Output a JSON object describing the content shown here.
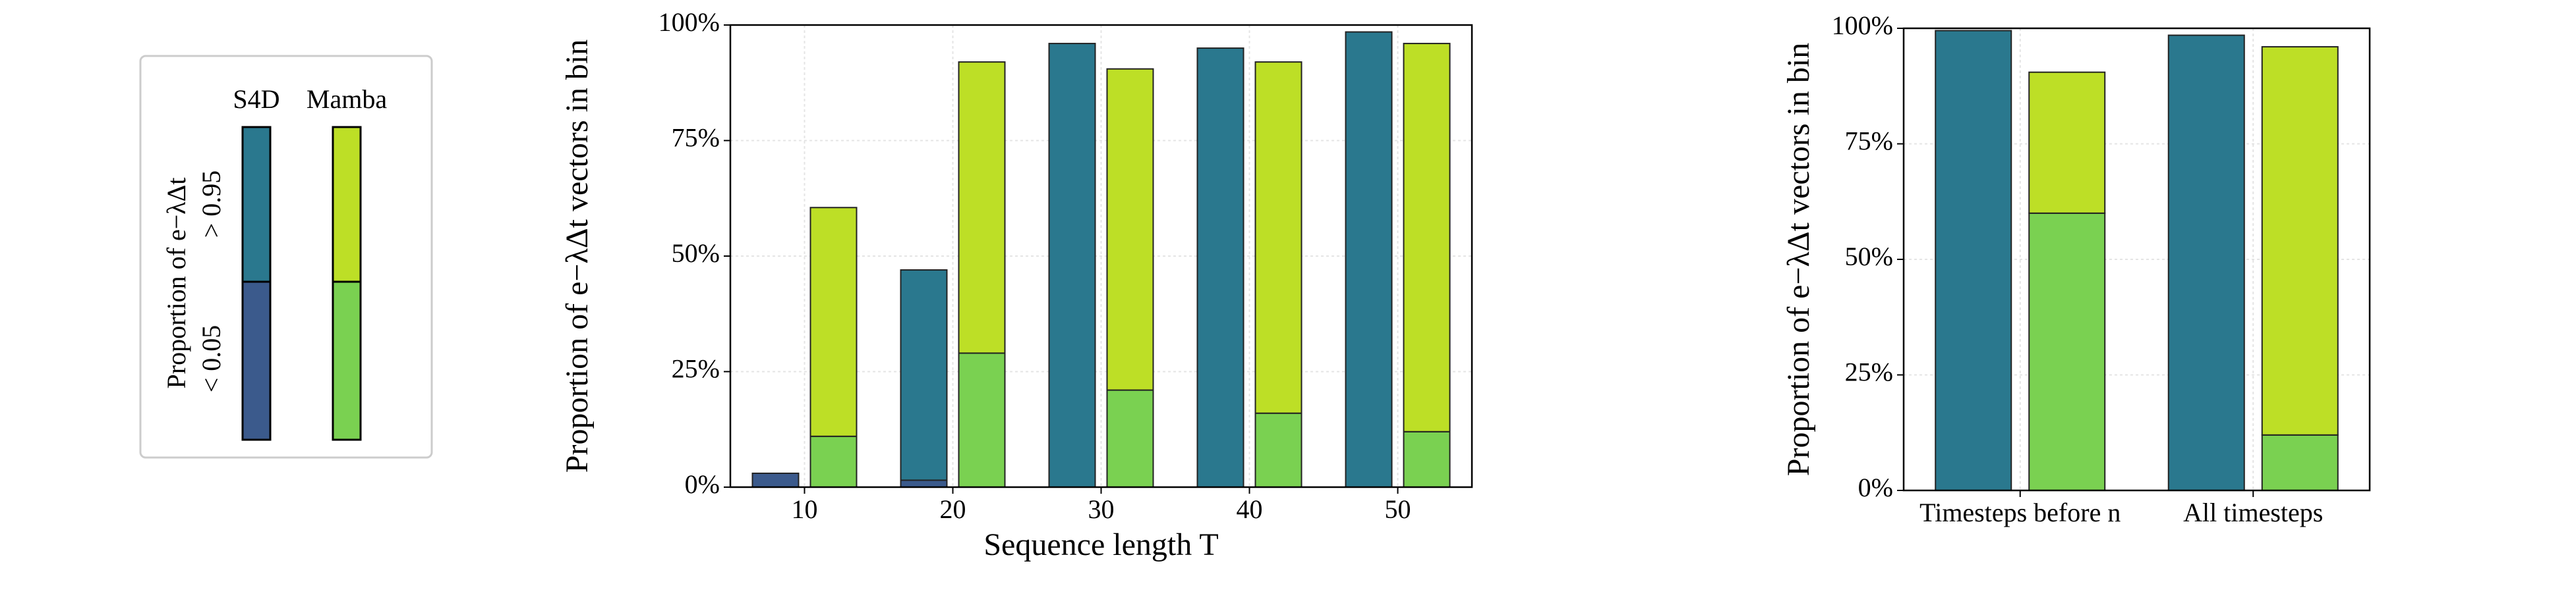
{
  "chart_data": [
    {
      "type": "stacked_bar",
      "legend_title": "Proportion of e−λΔt",
      "ylabel": "Proportion of e−λΔt  vectors in bin",
      "xlabel": "Sequence length T",
      "categories": [
        "10",
        "20",
        "30",
        "40",
        "50"
      ],
      "ylim": [
        0,
        100
      ],
      "yticks": [
        {
          "value": 0,
          "label": "0%"
        },
        {
          "value": 25,
          "label": "25%"
        },
        {
          "value": 50,
          "label": "50%"
        },
        {
          "value": 75,
          "label": "75%"
        },
        {
          "value": 100,
          "label": "100%"
        }
      ],
      "grid": true,
      "series": [
        {
          "name": "S4D",
          "segments": [
            {
              "name": "< 0.05",
              "color": "#3b5a8c",
              "values": [
                3,
                1.5,
                0,
                0,
                0
              ]
            },
            {
              "name": "> 0.95",
              "color": "#2a788e",
              "values": [
                0,
                45.5,
                96,
                95,
                98.5
              ]
            }
          ]
        },
        {
          "name": "Mamba",
          "segments": [
            {
              "color": "#7ad151",
              "values": [
                11,
                29,
                21,
                16,
                12
              ]
            },
            {
              "color": "#bddf26",
              "values": [
                49.5,
                63,
                69.5,
                76,
                84
              ]
            }
          ]
        }
      ]
    },
    {
      "type": "stacked_bar",
      "ylabel": "Proportion of e−λΔt  vectors in bin",
      "categories": [
        "Timesteps before n",
        "All timesteps"
      ],
      "ylim": [
        0,
        100
      ],
      "yticks": [
        {
          "value": 0,
          "label": "0%"
        },
        {
          "value": 25,
          "label": "25%"
        },
        {
          "value": 50,
          "label": "50%"
        },
        {
          "value": 75,
          "label": "75%"
        },
        {
          "value": 100,
          "label": "100%"
        }
      ],
      "grid": true,
      "series": [
        {
          "segments": [
            {
              "color": "#3b5a8c",
              "values": [
                0,
                0
              ]
            },
            {
              "color": "#2a788e",
              "values": [
                99.5,
                98.5
              ]
            }
          ]
        },
        {
          "segments": [
            {
              "color": "#7ad151",
              "values": [
                60,
                12
              ]
            },
            {
              "color": "#bddf26",
              "values": [
                30.5,
                84
              ]
            }
          ]
        }
      ]
    }
  ]
}
